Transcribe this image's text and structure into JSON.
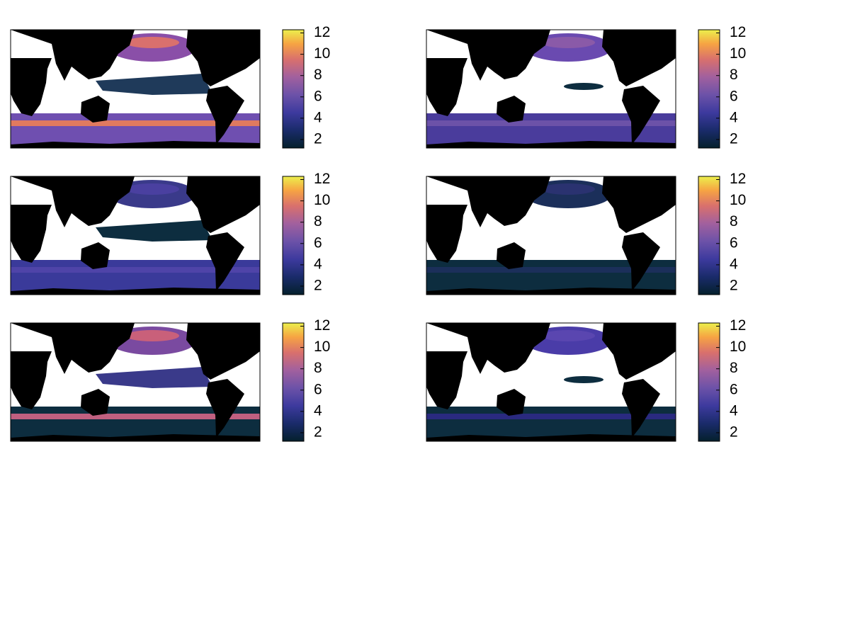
{
  "panels": [
    {
      "colorbar": {
        "lim": [
          1.2,
          12.3
        ],
        "ticks": [
          2,
          4,
          6,
          8,
          10,
          12
        ]
      }
    },
    {
      "colorbar": {
        "lim": [
          1.2,
          12.3
        ],
        "ticks": [
          2,
          4,
          6,
          8,
          10,
          12
        ]
      }
    },
    {
      "colorbar": {
        "lim": [
          1.2,
          12.3
        ],
        "ticks": [
          2,
          4,
          6,
          8,
          10,
          12
        ]
      }
    },
    {
      "colorbar": {
        "lim": [
          1.2,
          12.3
        ],
        "ticks": [
          2,
          4,
          6,
          8,
          10,
          12
        ]
      }
    },
    {
      "colorbar": {
        "lim": [
          1.2,
          12.3
        ],
        "ticks": [
          2,
          4,
          6,
          8,
          10,
          12
        ]
      }
    },
    {
      "colorbar": {
        "lim": [
          1.2,
          12.3
        ],
        "ticks": [
          2,
          4,
          6,
          8,
          10,
          12
        ]
      }
    }
  ]
}
